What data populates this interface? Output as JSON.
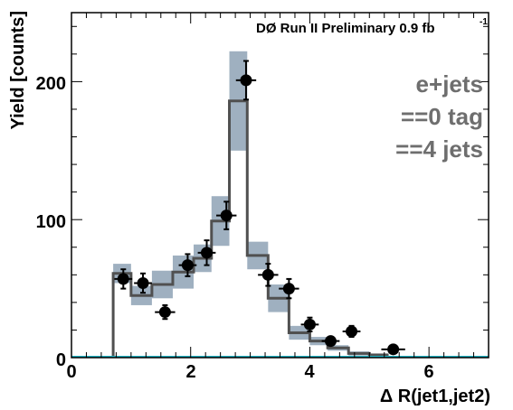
{
  "chart_data": {
    "type": "histogram",
    "header": "DØ Run II Preliminary 0.9 fb",
    "header_sup": "-1",
    "xlabel": "Δ R(jet1,jet2)",
    "ylabel": "Yield [counts]",
    "xlim": [
      0,
      7
    ],
    "ylim": [
      0,
      250
    ],
    "x_ticks": [
      "0",
      "2",
      "4",
      "6"
    ],
    "y_ticks": [
      "0",
      "100",
      "200"
    ],
    "annotations": [
      "e+jets",
      "==0 tag",
      "==4 jets"
    ],
    "colors": {
      "histogram": "#505050",
      "uncertainty_band": "#9fb0c0",
      "data": "#000000",
      "baseline": "#20b0c0"
    },
    "bin_edges": [
      0.7,
      1.0,
      1.35,
      1.7,
      2.05,
      2.35,
      2.65,
      2.95,
      3.3,
      3.65,
      4.0,
      4.3,
      4.65,
      5.0,
      5.3
    ],
    "prediction": [
      61,
      45,
      53,
      62,
      72,
      99,
      186,
      74,
      43,
      18,
      12,
      7,
      3,
      2
    ],
    "prediction_unc": [
      7,
      7,
      10,
      12,
      10,
      18,
      36,
      10,
      10,
      5,
      3,
      2,
      1.5,
      1
    ],
    "data_points": [
      {
        "x": 0.87,
        "y": 57,
        "xerr": 0.15,
        "yerr": 7
      },
      {
        "x": 1.2,
        "y": 54,
        "xerr": 0.15,
        "yerr": 7
      },
      {
        "x": 1.57,
        "y": 33,
        "xerr": 0.17,
        "yerr": 5
      },
      {
        "x": 1.95,
        "y": 67,
        "xerr": 0.15,
        "yerr": 8
      },
      {
        "x": 2.27,
        "y": 76,
        "xerr": 0.15,
        "yerr": 9
      },
      {
        "x": 2.6,
        "y": 103,
        "xerr": 0.17,
        "yerr": 10
      },
      {
        "x": 2.93,
        "y": 201,
        "xerr": 0.17,
        "yerr": 14
      },
      {
        "x": 3.3,
        "y": 60,
        "xerr": 0.17,
        "yerr": 8
      },
      {
        "x": 3.65,
        "y": 50,
        "xerr": 0.17,
        "yerr": 7
      },
      {
        "x": 4.0,
        "y": 24,
        "xerr": 0.15,
        "yerr": 5
      },
      {
        "x": 4.35,
        "y": 12,
        "xerr": 0.15,
        "yerr": 3
      },
      {
        "x": 4.7,
        "y": 19,
        "xerr": 0.15,
        "yerr": 4
      },
      {
        "x": 5.4,
        "y": 6,
        "xerr": 0.2,
        "yerr": 2.5
      }
    ]
  }
}
